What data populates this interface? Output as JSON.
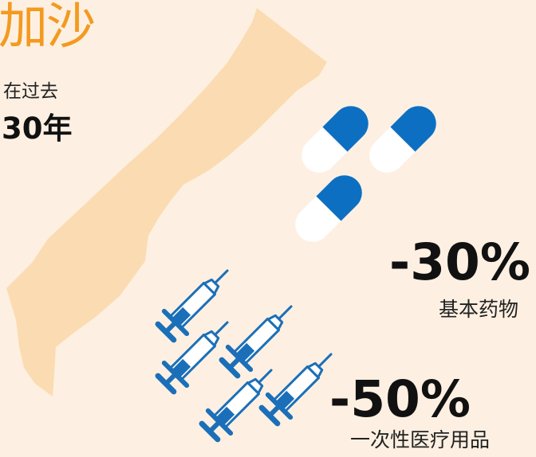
{
  "title": "加沙",
  "subtitle": "在过去",
  "years": "30年",
  "stats": [
    {
      "value": "-30%",
      "label": "基本药物"
    },
    {
      "value": "-50%",
      "label": "一次性医疗用品"
    }
  ],
  "colors": {
    "background": "#fdf0e2",
    "map": "#fbdcb2",
    "title": "#f39a1f",
    "pill_blue": "#0d6fc2",
    "pill_white": "#ffffff",
    "syringe": "#1b6fb8"
  },
  "icons": [
    "gaza-map-shape",
    "capsule-icon",
    "syringe-icon"
  ]
}
